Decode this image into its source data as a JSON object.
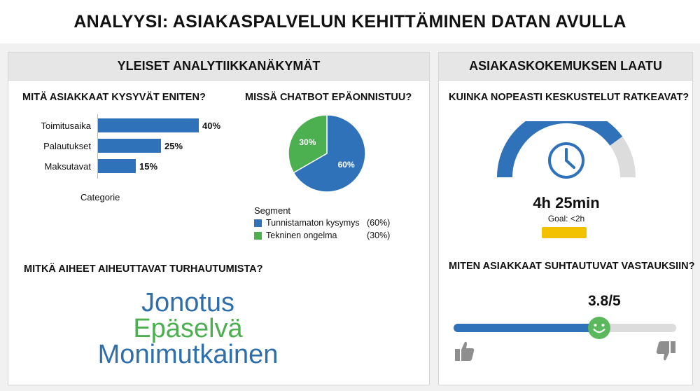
{
  "title": "ANALYYSI: ASIAKASPALVELUN KEHITTÄMINEN DATAN AVULLA",
  "left_panel": {
    "header": "YLEISET ANALYTIIKKANÄKYMÄT",
    "questions_title": "MITÄ ASIAKKAAT KYSYVÄT ENITEN?",
    "chatbot_title": "MISSÄ CHATBOT EPÄONNISTUU?",
    "frustration_title": "MITKÄ AIHEET AIHEUTTAVAT TURHAUTUMISTA?",
    "frustration_words": [
      {
        "text": "Jonotus",
        "color": "#2e6fab"
      },
      {
        "text": "Epäselvä",
        "color": "#4caf50"
      },
      {
        "text": "Monimutkainen",
        "color": "#2e6fab"
      }
    ]
  },
  "right_panel": {
    "header": "ASIAKASKOKEMUKSEN LAATU",
    "resolution_title": "KUINKA NOPEASTI KESKUSTELUT RATKEAVAT?",
    "duration": "4h 25min",
    "goal": "Goal: <2h",
    "response_title": "MITEN ASIAKKAAT SUHTAUTUVAT VASTAUKSIIN?",
    "rating_label": "3.8/5",
    "gauge_fraction": 0.8,
    "goal_bar_color": "#f2c200",
    "icons": [
      "clock-icon",
      "smiley-icon",
      "thumbs-up-icon",
      "thumbs-down-icon"
    ]
  },
  "chart_data": [
    {
      "type": "bar",
      "orientation": "horizontal",
      "title": "MITÄ ASIAKKAAT KYSYVÄT ENITEN?",
      "categories": [
        "Toimitusaika",
        "Palautukset",
        "Maksutavat"
      ],
      "values": [
        40,
        25,
        15
      ],
      "data_labels": [
        "40%",
        "25%",
        "15%"
      ],
      "xlim": [
        0,
        45
      ],
      "xlabel": "Categorie",
      "color": "#2f72b9",
      "grid": false
    },
    {
      "type": "pie",
      "title": "MISSÄ CHATBOT EPÄONNISTUU?",
      "legend_title": "Segment",
      "slices": [
        {
          "name": "Tunnistamaton kysymys",
          "value": 60,
          "label": "60%",
          "legend_value": "(60%)",
          "color": "#2f72b9"
        },
        {
          "name": "Tekninen ongelma",
          "value": 30,
          "label": "30%",
          "legend_value": "(30%)",
          "color": "#4caf50"
        }
      ],
      "legend_position": "bottom"
    },
    {
      "type": "bar",
      "orientation": "horizontal",
      "title": "MITEN ASIAKKAAT SUHTAUTUVAT VASTAUKSIIN?",
      "value": 3.8,
      "max": 5,
      "data_label": "3.8/5",
      "colors": {
        "fill": "#2f72b9",
        "track": "#dcdcdc",
        "marker": "#5cb85c"
      }
    }
  ]
}
